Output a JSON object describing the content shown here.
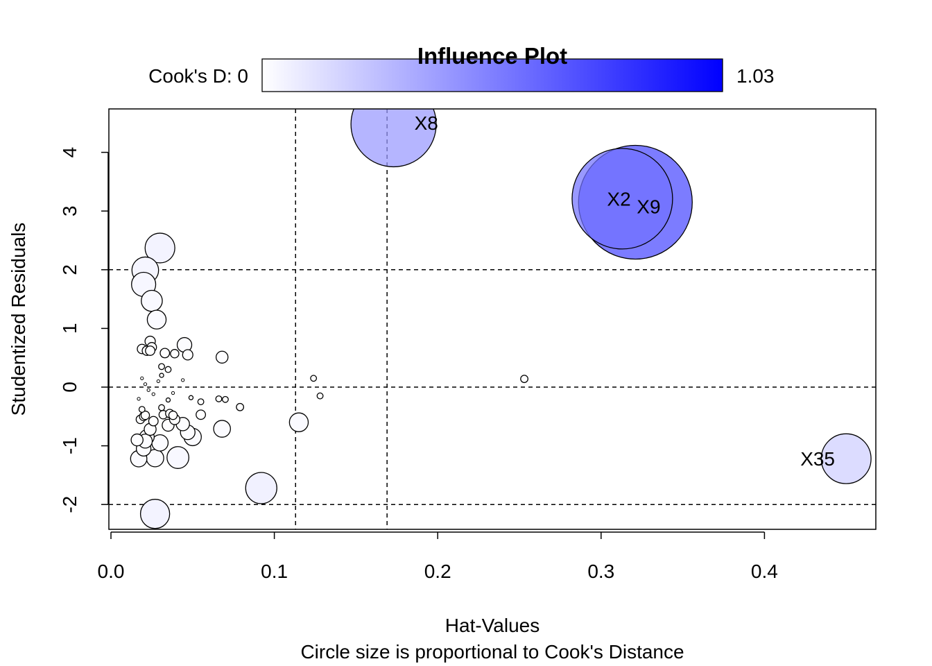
{
  "chart_data": {
    "type": "scatter",
    "title": "Influence Plot",
    "xlabel": "Hat-Values",
    "subtitle": "Circle size is proportional to Cook's Distance",
    "ylabel": "Studentized Residuals",
    "xlim": [
      0,
      0.47
    ],
    "ylim": [
      -2.4,
      4.75
    ],
    "x_ticks": [
      0.0,
      0.1,
      0.2,
      0.3,
      0.4
    ],
    "x_tick_labels": [
      "0.0",
      "0.1",
      "0.2",
      "0.3",
      "0.4"
    ],
    "y_ticks": [
      -2,
      -1,
      0,
      1,
      2,
      3,
      4
    ],
    "y_tick_labels": [
      "-2",
      "-1",
      "0",
      "1",
      "2",
      "3",
      "4"
    ],
    "grid": false,
    "reference_lines": {
      "vertical": [
        0.113,
        0.169
      ],
      "horizontal": [
        -2,
        0,
        2
      ]
    },
    "color_legend": {
      "label_min": "Cook's D: 0",
      "label_max": "1.03",
      "min": 0,
      "max": 1.03,
      "color_low": "#ffffff",
      "color_high": "#0000ff",
      "placement": "top"
    },
    "points": [
      {
        "x": 0.173,
        "y": 4.48,
        "cook": 0.41,
        "label": "X8"
      },
      {
        "x": 0.313,
        "y": 3.21,
        "cook": 0.57,
        "label": "X2"
      },
      {
        "x": 0.321,
        "y": 3.15,
        "cook": 0.73,
        "label": "X9"
      },
      {
        "x": 0.45,
        "y": -1.22,
        "cook": 0.14,
        "label": "X35"
      },
      {
        "x": 0.092,
        "y": -1.72,
        "cook": 0.055,
        "label": ""
      },
      {
        "x": 0.03,
        "y": 2.37,
        "cook": 0.05,
        "label": ""
      },
      {
        "x": 0.021,
        "y": 1.99,
        "cook": 0.04,
        "label": ""
      },
      {
        "x": 0.02,
        "y": 1.75,
        "cook": 0.033,
        "label": ""
      },
      {
        "x": 0.025,
        "y": 1.47,
        "cook": 0.025,
        "label": ""
      },
      {
        "x": 0.028,
        "y": 1.15,
        "cook": 0.02,
        "label": ""
      },
      {
        "x": 0.027,
        "y": -2.16,
        "cook": 0.048,
        "label": ""
      },
      {
        "x": 0.041,
        "y": -1.2,
        "cook": 0.027,
        "label": ""
      },
      {
        "x": 0.115,
        "y": -0.6,
        "cook": 0.02,
        "label": ""
      },
      {
        "x": 0.017,
        "y": -1.22,
        "cook": 0.015,
        "label": ""
      },
      {
        "x": 0.027,
        "y": -1.21,
        "cook": 0.017,
        "label": ""
      },
      {
        "x": 0.03,
        "y": -0.95,
        "cook": 0.015,
        "label": ""
      },
      {
        "x": 0.05,
        "y": -0.85,
        "cook": 0.017,
        "label": ""
      },
      {
        "x": 0.068,
        "y": -0.71,
        "cook": 0.016,
        "label": ""
      },
      {
        "x": 0.02,
        "y": -1.05,
        "cook": 0.012,
        "label": ""
      },
      {
        "x": 0.022,
        "y": -0.85,
        "cook": 0.012,
        "label": ""
      },
      {
        "x": 0.021,
        "y": -0.92,
        "cook": 0.011,
        "label": ""
      },
      {
        "x": 0.047,
        "y": -0.77,
        "cook": 0.012,
        "label": ""
      },
      {
        "x": 0.045,
        "y": 0.72,
        "cook": 0.012,
        "label": ""
      },
      {
        "x": 0.044,
        "y": -0.63,
        "cook": 0.01,
        "label": ""
      },
      {
        "x": 0.024,
        "y": -0.72,
        "cook": 0.008,
        "label": ""
      },
      {
        "x": 0.016,
        "y": -0.9,
        "cook": 0.008,
        "label": ""
      },
      {
        "x": 0.035,
        "y": -0.65,
        "cook": 0.008,
        "label": ""
      },
      {
        "x": 0.068,
        "y": 0.51,
        "cook": 0.008,
        "label": ""
      },
      {
        "x": 0.047,
        "y": 0.55,
        "cook": 0.006,
        "label": ""
      },
      {
        "x": 0.024,
        "y": 0.78,
        "cook": 0.006,
        "label": ""
      },
      {
        "x": 0.039,
        "y": -0.55,
        "cook": 0.006,
        "label": ""
      },
      {
        "x": 0.055,
        "y": -0.47,
        "cook": 0.005,
        "label": ""
      },
      {
        "x": 0.026,
        "y": -0.58,
        "cook": 0.005,
        "label": ""
      },
      {
        "x": 0.019,
        "y": 0.65,
        "cook": 0.005,
        "label": ""
      },
      {
        "x": 0.022,
        "y": 0.62,
        "cook": 0.005,
        "label": ""
      },
      {
        "x": 0.025,
        "y": 0.68,
        "cook": 0.005,
        "label": ""
      },
      {
        "x": 0.024,
        "y": 0.62,
        "cook": 0.005,
        "label": ""
      },
      {
        "x": 0.033,
        "y": 0.58,
        "cook": 0.005,
        "label": ""
      },
      {
        "x": 0.039,
        "y": 0.57,
        "cook": 0.004,
        "label": ""
      },
      {
        "x": 0.032,
        "y": -0.47,
        "cook": 0.004,
        "label": ""
      },
      {
        "x": 0.036,
        "y": -0.45,
        "cook": 0.004,
        "label": ""
      },
      {
        "x": 0.038,
        "y": -0.48,
        "cook": 0.004,
        "label": ""
      },
      {
        "x": 0.018,
        "y": -0.55,
        "cook": 0.004,
        "label": ""
      },
      {
        "x": 0.02,
        "y": -0.5,
        "cook": 0.004,
        "label": ""
      },
      {
        "x": 0.021,
        "y": -0.48,
        "cook": 0.004,
        "label": ""
      },
      {
        "x": 0.079,
        "y": -0.34,
        "cook": 0.003,
        "label": ""
      },
      {
        "x": 0.253,
        "y": 0.14,
        "cook": 0.003,
        "label": ""
      },
      {
        "x": 0.031,
        "y": 0.35,
        "cook": 0.002,
        "label": ""
      },
      {
        "x": 0.035,
        "y": 0.3,
        "cook": 0.002,
        "label": ""
      },
      {
        "x": 0.124,
        "y": 0.15,
        "cook": 0.002,
        "label": ""
      },
      {
        "x": 0.128,
        "y": -0.15,
        "cook": 0.002,
        "label": ""
      },
      {
        "x": 0.055,
        "y": -0.25,
        "cook": 0.002,
        "label": ""
      },
      {
        "x": 0.066,
        "y": -0.2,
        "cook": 0.002,
        "label": ""
      },
      {
        "x": 0.07,
        "y": -0.21,
        "cook": 0.002,
        "label": ""
      },
      {
        "x": 0.031,
        "y": -0.35,
        "cook": 0.002,
        "label": ""
      },
      {
        "x": 0.019,
        "y": -0.38,
        "cook": 0.002,
        "label": ""
      },
      {
        "x": 0.031,
        "y": 0.2,
        "cook": 0.001,
        "label": ""
      },
      {
        "x": 0.035,
        "y": -0.22,
        "cook": 0.001,
        "label": ""
      },
      {
        "x": 0.049,
        "y": -0.18,
        "cook": 0.001,
        "label": ""
      },
      {
        "x": 0.019,
        "y": 0.15,
        "cook": 0.0005,
        "label": ""
      },
      {
        "x": 0.044,
        "y": 0.12,
        "cook": 0.0005,
        "label": ""
      },
      {
        "x": 0.021,
        "y": 0.05,
        "cook": 0.0005,
        "label": ""
      },
      {
        "x": 0.023,
        "y": -0.05,
        "cook": 0.0005,
        "label": ""
      },
      {
        "x": 0.026,
        "y": -0.12,
        "cook": 0.0005,
        "label": ""
      },
      {
        "x": 0.017,
        "y": -0.2,
        "cook": 0.0005,
        "label": ""
      },
      {
        "x": 0.029,
        "y": 0.1,
        "cook": 0.0005,
        "label": ""
      },
      {
        "x": 0.038,
        "y": -0.1,
        "cook": 0.0005,
        "label": ""
      }
    ]
  }
}
